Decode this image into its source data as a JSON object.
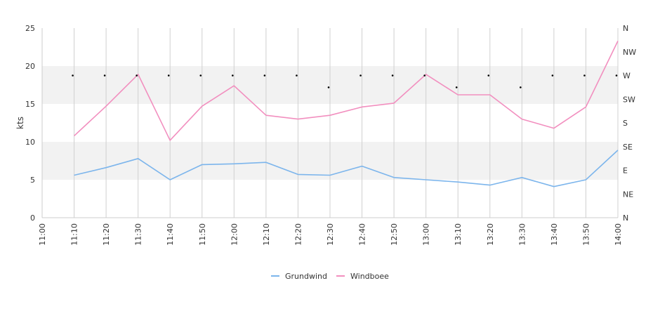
{
  "chart_data": {
    "type": "line",
    "ylabel": "kts",
    "ylim": [
      0,
      25
    ],
    "yticks": [
      "0",
      "5",
      "10",
      "15",
      "20",
      "25"
    ],
    "x_tick_labels": [
      "11:00",
      "11:10",
      "11:20",
      "11:30",
      "11:40",
      "11:50",
      "12:00",
      "12:10",
      "12:20",
      "12:30",
      "12:40",
      "12:50",
      "13:00",
      "13:10",
      "13:20",
      "13:30",
      "13:40",
      "13:50",
      "14:00"
    ],
    "x": [
      "11:10",
      "11:20",
      "11:30",
      "11:40",
      "11:50",
      "12:00",
      "12:10",
      "12:20",
      "12:30",
      "12:40",
      "12:50",
      "13:00",
      "13:10",
      "13:20",
      "13:30",
      "13:40",
      "13:50",
      "14:00"
    ],
    "series": [
      {
        "name": "Grundwind",
        "color": "#7cb5ec",
        "values": [
          5.6,
          6.6,
          7.8,
          5.0,
          7.0,
          7.1,
          7.3,
          5.7,
          5.6,
          6.8,
          5.3,
          5.0,
          4.7,
          4.3,
          5.3,
          4.1,
          5.0,
          8.9
        ]
      },
      {
        "name": "Windboee",
        "color": "#f28fbf",
        "values": [
          10.8,
          14.7,
          18.9,
          10.2,
          14.7,
          17.4,
          13.5,
          13.0,
          13.5,
          14.6,
          15.1,
          18.9,
          16.2,
          16.2,
          13.0,
          11.8,
          14.6,
          23.3
        ]
      }
    ],
    "direction_axis": {
      "labels": [
        "N",
        "NE",
        "E",
        "SE",
        "S",
        "SW",
        "W",
        "NW",
        "N"
      ],
      "markers": [
        "W",
        "W",
        "W",
        "W",
        "W",
        "W",
        "W",
        "W",
        "WSW",
        "W",
        "W",
        "W",
        "WSW",
        "W",
        "WSW",
        "W",
        "W",
        "W"
      ]
    },
    "bands": [
      [
        5,
        10
      ],
      [
        15,
        20
      ]
    ],
    "grid": "vertical",
    "legend_position": "bottom-center"
  }
}
